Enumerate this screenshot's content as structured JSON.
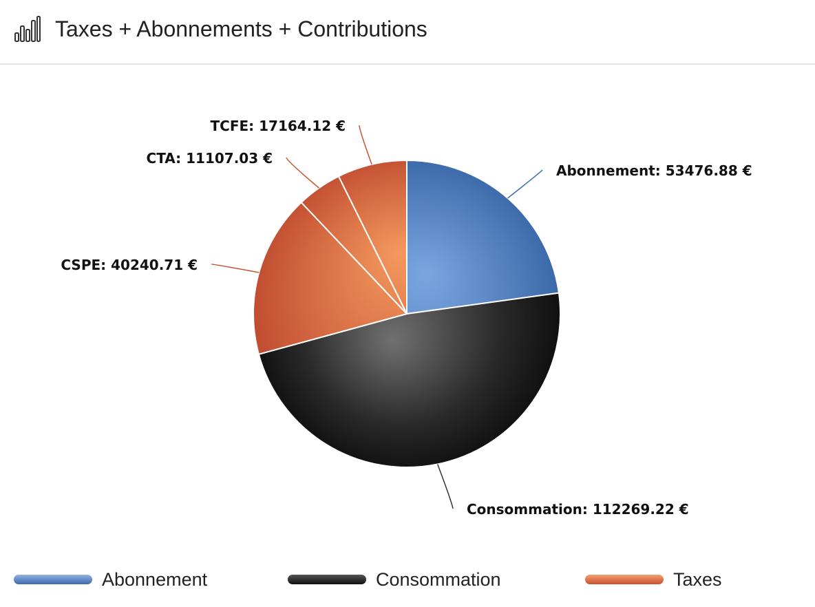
{
  "header": {
    "title": "Taxes + Abonnements + Contributions",
    "icon": "bar-chart-icon"
  },
  "chart_data": {
    "type": "pie",
    "title": "",
    "currency": "€",
    "slices": [
      {
        "label": "Abonnement",
        "value": 53476.88,
        "category": "Abonnement",
        "display": "Abonnement: 53476.88 €"
      },
      {
        "label": "Consommation",
        "value": 112269.22,
        "category": "Consommation",
        "display": "Consommation: 112269.22 €"
      },
      {
        "label": "CSPE",
        "value": 40240.71,
        "category": "Taxes",
        "display": "CSPE: 40240.71 €"
      },
      {
        "label": "CTA",
        "value": 11107.03,
        "category": "Taxes",
        "display": "CTA: 11107.03 €"
      },
      {
        "label": "TCFE",
        "value": 17164.12,
        "category": "Taxes",
        "display": "TCFE: 17164.12 €"
      }
    ],
    "legend": [
      {
        "label": "Abonnement",
        "color": "#4a78b8"
      },
      {
        "label": "Consommation",
        "color": "#222222"
      },
      {
        "label": "Taxes",
        "color": "#d9683a"
      }
    ],
    "legend_position": "bottom"
  }
}
